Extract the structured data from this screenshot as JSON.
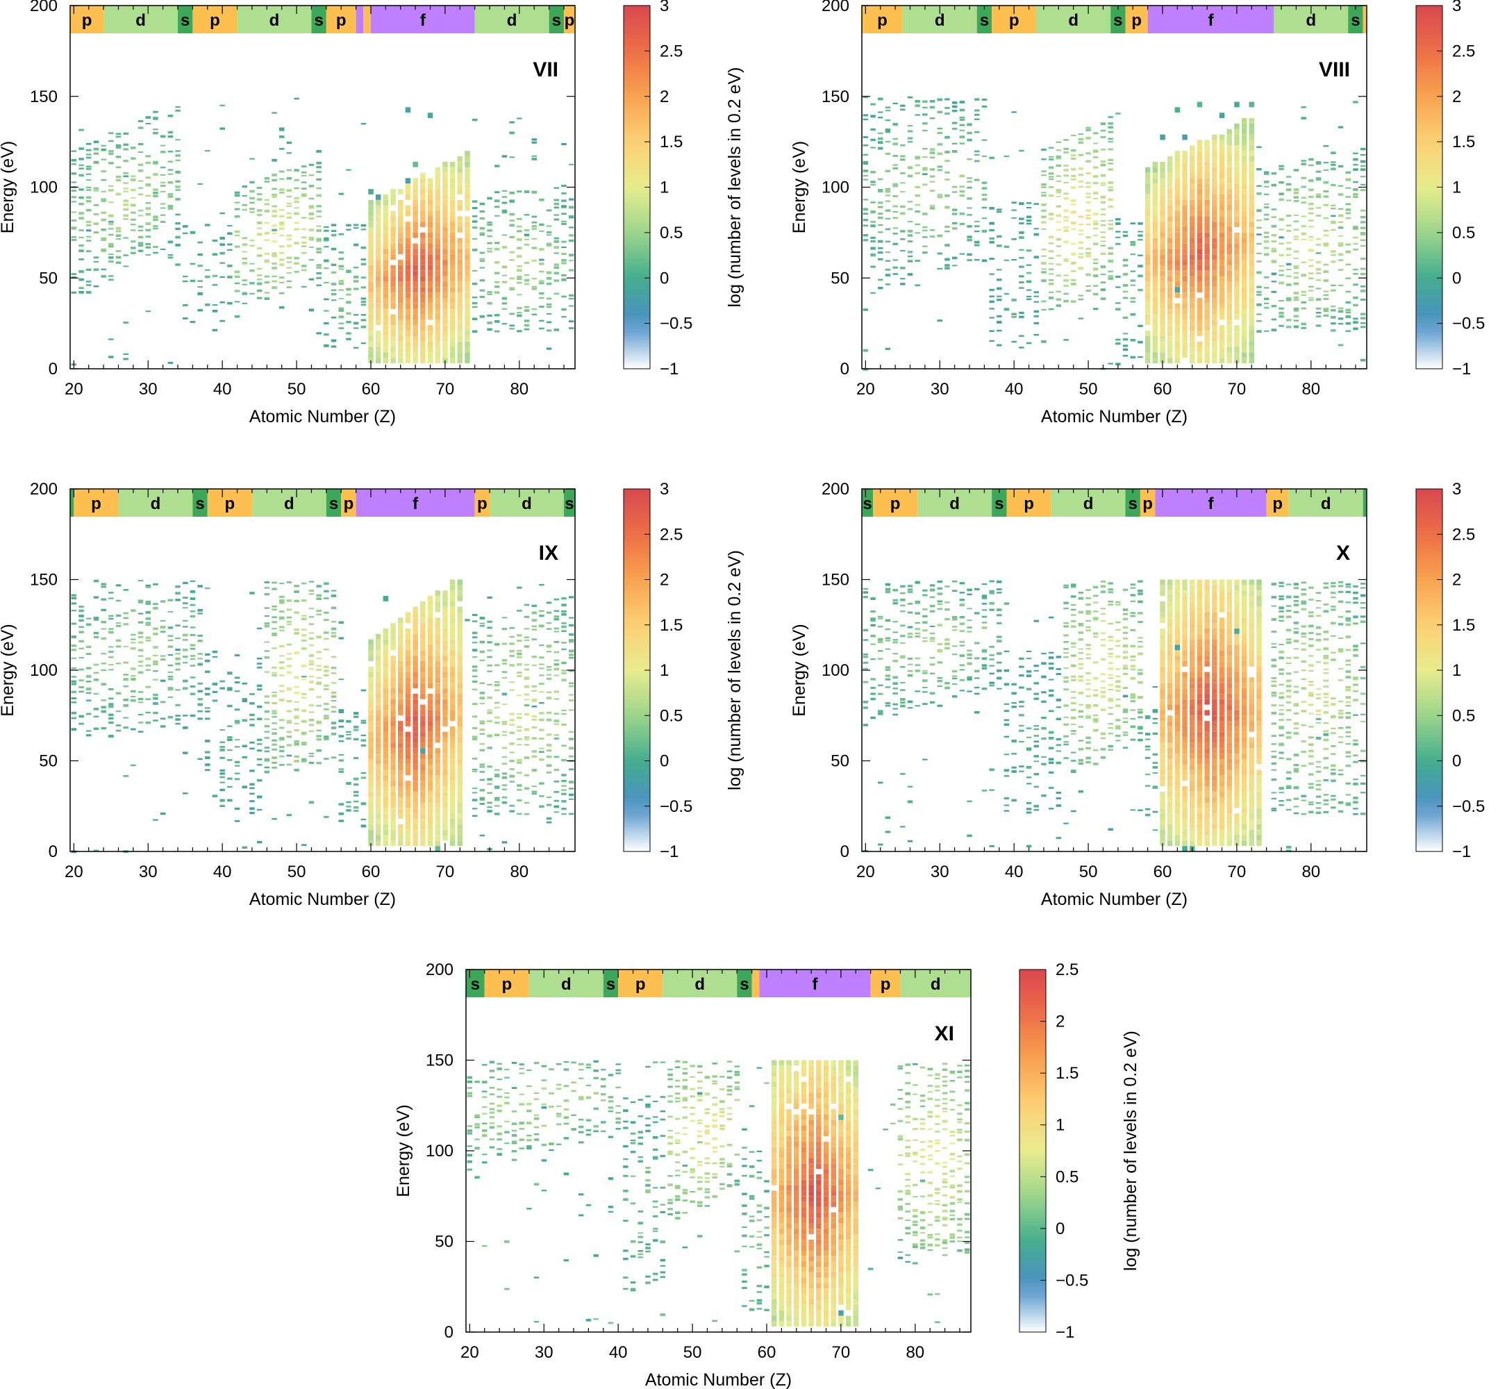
{
  "figure": {
    "xlabel": "Atomic Number (Z)",
    "ylabel": "Energy (eV)",
    "colorbar_label": "log (number of levels in 0.2 eV)",
    "block_colors": {
      "s": "#3ea85a",
      "p": "#fdbf4f",
      "d": "#aede8f",
      "f": "#bf80ff"
    },
    "colormap": [
      [
        "-1",
        "#ffffff"
      ],
      [
        "-0.5",
        "#4b8fc8"
      ],
      [
        "0",
        "#45ad8e"
      ],
      [
        "0.5",
        "#9dd58b"
      ],
      [
        "1",
        "#e8ec8e"
      ],
      [
        "1.5",
        "#fdd174"
      ],
      [
        "2",
        "#f8a350"
      ],
      [
        "2.5",
        "#ee6f47"
      ],
      [
        "3",
        "#d8474f"
      ]
    ]
  },
  "chart_data": [
    {
      "type": "heatmap",
      "title": "VII",
      "xlim": [
        19.5,
        87.5
      ],
      "ylim": [
        0,
        200
      ],
      "xticks": [
        20,
        30,
        40,
        50,
        60,
        70,
        80
      ],
      "yticks": [
        0,
        50,
        100,
        150,
        200
      ],
      "clim": [
        -1,
        3
      ],
      "cticks": [
        "3",
        "2.5",
        "2",
        "1.5",
        "1",
        "0.5",
        "0",
        "−0.5",
        "−1"
      ],
      "blocks": [
        [
          "p",
          19.5,
          24
        ],
        [
          "d",
          24,
          34
        ],
        [
          "s",
          34,
          36
        ],
        [
          "p",
          36,
          42
        ],
        [
          "d",
          42,
          52
        ],
        [
          "s",
          52,
          54
        ],
        [
          "p",
          54,
          58
        ],
        [
          "f",
          58,
          59
        ],
        [
          "p",
          59,
          60
        ],
        [
          "f",
          60,
          74
        ],
        [
          "d",
          74,
          84
        ],
        [
          "s",
          84,
          86
        ],
        [
          "p",
          86,
          87.5
        ]
      ],
      "clusters": [
        {
          "z": [
            20,
            34
          ],
          "e_lo": [
            40,
            60
          ],
          "e_hi": [
            120,
            147
          ],
          "peak": 0.7
        },
        {
          "z": [
            35,
            41
          ],
          "e_lo": [
            20,
            20
          ],
          "e_hi": [
            80,
            80
          ],
          "peak": 0.2
        },
        {
          "z": [
            42,
            53
          ],
          "e_lo": [
            35,
            45
          ],
          "e_hi": [
            100,
            115
          ],
          "peak": 1.1
        },
        {
          "z": [
            54,
            59
          ],
          "e_lo": [
            10,
            10
          ],
          "e_hi": [
            80,
            80
          ],
          "peak": 0.5
        },
        {
          "z": [
            60,
            73
          ],
          "e_lo": [
            2,
            2
          ],
          "e_hi": [
            90,
            118
          ],
          "peak": 2.8
        },
        {
          "z": [
            74,
            87
          ],
          "e_lo": [
            20,
            20
          ],
          "e_hi": [
            95,
            100
          ],
          "peak": 0.7
        }
      ]
    },
    {
      "type": "heatmap",
      "title": "VIII",
      "xlim": [
        19.5,
        87.5
      ],
      "ylim": [
        0,
        200
      ],
      "xticks": [
        20,
        30,
        40,
        50,
        60,
        70,
        80
      ],
      "yticks": [
        0,
        50,
        100,
        150,
        200
      ],
      "clim": [
        -1,
        3
      ],
      "cticks": [
        "3",
        "2.5",
        "2",
        "1.5",
        "1",
        "0.5",
        "0",
        "−0.5",
        "−1"
      ],
      "blocks": [
        [
          "p",
          19.5,
          25
        ],
        [
          "d",
          25,
          35
        ],
        [
          "s",
          35,
          37
        ],
        [
          "p",
          37,
          43
        ],
        [
          "d",
          43,
          53
        ],
        [
          "s",
          53,
          55
        ],
        [
          "p",
          55,
          58
        ],
        [
          "f",
          58,
          75
        ],
        [
          "d",
          75,
          85
        ],
        [
          "s",
          85,
          87
        ],
        [
          "p",
          87,
          87.5
        ]
      ],
      "clusters": [
        {
          "z": [
            20,
            36
          ],
          "e_lo": [
            40,
            60
          ],
          "e_hi": [
            150,
            150
          ],
          "peak": 0.6
        },
        {
          "z": [
            37,
            43
          ],
          "e_lo": [
            10,
            10
          ],
          "e_hi": [
            90,
            90
          ],
          "peak": 0.2
        },
        {
          "z": [
            44,
            53
          ],
          "e_lo": [
            30,
            40
          ],
          "e_hi": [
            120,
            138
          ],
          "peak": 1.3
        },
        {
          "z": [
            54,
            57
          ],
          "e_lo": [
            5,
            5
          ],
          "e_hi": [
            80,
            80
          ],
          "peak": 0.4
        },
        {
          "z": [
            58,
            72
          ],
          "e_lo": [
            2,
            2
          ],
          "e_hi": [
            110,
            137
          ],
          "peak": 2.7
        },
        {
          "z": [
            73,
            87
          ],
          "e_lo": [
            20,
            20
          ],
          "e_hi": [
            110,
            120
          ],
          "peak": 0.9
        }
      ]
    },
    {
      "type": "heatmap",
      "title": "IX",
      "xlim": [
        19.5,
        87.5
      ],
      "ylim": [
        0,
        200
      ],
      "xticks": [
        20,
        30,
        40,
        50,
        60,
        70,
        80
      ],
      "yticks": [
        0,
        50,
        100,
        150,
        200
      ],
      "clim": [
        -1,
        3
      ],
      "cticks": [
        "3",
        "2.5",
        "2",
        "1.5",
        "1",
        "0.5",
        "0",
        "−0.5",
        "−1"
      ],
      "blocks": [
        [
          "s",
          19.5,
          20
        ],
        [
          "p",
          20,
          26
        ],
        [
          "d",
          26,
          36
        ],
        [
          "s",
          36,
          38
        ],
        [
          "p",
          38,
          44
        ],
        [
          "d",
          44,
          54
        ],
        [
          "s",
          54,
          56
        ],
        [
          "p",
          56,
          58
        ],
        [
          "f",
          58,
          74
        ],
        [
          "p",
          74,
          76
        ],
        [
          "d",
          76,
          86
        ],
        [
          "s",
          86,
          87.5
        ]
      ],
      "clusters": [
        {
          "z": [
            20,
            37
          ],
          "e_lo": [
            60,
            70
          ],
          "e_hi": [
            150,
            150
          ],
          "peak": 0.6
        },
        {
          "z": [
            38,
            45
          ],
          "e_lo": [
            20,
            20
          ],
          "e_hi": [
            110,
            110
          ],
          "peak": 0.2
        },
        {
          "z": [
            46,
            55
          ],
          "e_lo": [
            40,
            50
          ],
          "e_hi": [
            150,
            150
          ],
          "peak": 1.1
        },
        {
          "z": [
            56,
            59
          ],
          "e_lo": [
            10,
            10
          ],
          "e_hi": [
            80,
            80
          ],
          "peak": 0.4
        },
        {
          "z": [
            60,
            72
          ],
          "e_lo": [
            2,
            2
          ],
          "e_hi": [
            115,
            150
          ],
          "peak": 2.8
        },
        {
          "z": [
            74,
            87
          ],
          "e_lo": [
            20,
            20
          ],
          "e_hi": [
            130,
            140
          ],
          "peak": 0.9
        }
      ]
    },
    {
      "type": "heatmap",
      "title": "X",
      "xlim": [
        19.5,
        87.5
      ],
      "ylim": [
        0,
        200
      ],
      "xticks": [
        20,
        30,
        40,
        50,
        60,
        70,
        80
      ],
      "yticks": [
        0,
        50,
        100,
        150,
        200
      ],
      "clim": [
        -1,
        3
      ],
      "cticks": [
        "3",
        "2.5",
        "2",
        "1.5",
        "1",
        "0.5",
        "0",
        "−0.5",
        "−1"
      ],
      "blocks": [
        [
          "s",
          19.5,
          21
        ],
        [
          "p",
          21,
          27
        ],
        [
          "d",
          27,
          37
        ],
        [
          "s",
          37,
          39
        ],
        [
          "p",
          39,
          45
        ],
        [
          "d",
          45,
          55
        ],
        [
          "s",
          55,
          57
        ],
        [
          "p",
          57,
          59
        ],
        [
          "f",
          59,
          74
        ],
        [
          "p",
          74,
          77
        ],
        [
          "d",
          77,
          87
        ],
        [
          "s",
          87,
          87.5
        ]
      ],
      "clusters": [
        {
          "z": [
            20,
            38
          ],
          "e_lo": [
            70,
            90
          ],
          "e_hi": [
            150,
            150
          ],
          "peak": 0.6
        },
        {
          "z": [
            39,
            46
          ],
          "e_lo": [
            20,
            20
          ],
          "e_hi": [
            110,
            110
          ],
          "peak": 0.2
        },
        {
          "z": [
            47,
            57
          ],
          "e_lo": [
            40,
            60
          ],
          "e_hi": [
            150,
            150
          ],
          "peak": 1.1
        },
        {
          "z": [
            58,
            59
          ],
          "e_lo": [
            10,
            10
          ],
          "e_hi": [
            80,
            80
          ],
          "peak": 0.4
        },
        {
          "z": [
            60,
            73
          ],
          "e_lo": [
            2,
            2
          ],
          "e_hi": [
            150,
            150
          ],
          "peak": 2.9
        },
        {
          "z": [
            75,
            87
          ],
          "e_lo": [
            20,
            20
          ],
          "e_hi": [
            150,
            150
          ],
          "peak": 0.9
        }
      ]
    },
    {
      "type": "heatmap",
      "title": "XI",
      "xlim": [
        19.5,
        87.5
      ],
      "ylim": [
        0,
        200
      ],
      "xticks": [
        20,
        30,
        40,
        50,
        60,
        70,
        80
      ],
      "yticks": [
        0,
        50,
        100,
        150,
        200
      ],
      "clim": [
        -1,
        2.5
      ],
      "cticks": [
        "2.5",
        "2",
        "1.5",
        "1",
        "0.5",
        "0",
        "−0.5",
        "−1"
      ],
      "blocks": [
        [
          "s",
          19.5,
          22
        ],
        [
          "p",
          22,
          28
        ],
        [
          "d",
          28,
          38
        ],
        [
          "s",
          38,
          40
        ],
        [
          "p",
          40,
          46
        ],
        [
          "d",
          46,
          56
        ],
        [
          "s",
          56,
          58
        ],
        [
          "p",
          58,
          59
        ],
        [
          "f",
          59,
          74
        ],
        [
          "p",
          74,
          78
        ],
        [
          "d",
          78,
          87.5
        ]
      ],
      "clusters": [
        {
          "z": [
            20,
            40
          ],
          "e_lo": [
            90,
            110
          ],
          "e_hi": [
            150,
            150
          ],
          "peak": 0.5
        },
        {
          "z": [
            41,
            46
          ],
          "e_lo": [
            20,
            20
          ],
          "e_hi": [
            130,
            130
          ],
          "peak": 0.2
        },
        {
          "z": [
            47,
            56
          ],
          "e_lo": [
            60,
            80
          ],
          "e_hi": [
            150,
            150
          ],
          "peak": 0.9
        },
        {
          "z": [
            57,
            60
          ],
          "e_lo": [
            10,
            10
          ],
          "e_hi": [
            100,
            100
          ],
          "peak": 0.3
        },
        {
          "z": [
            61,
            72
          ],
          "e_lo": [
            2,
            2
          ],
          "e_hi": [
            150,
            150
          ],
          "peak": 2.4
        },
        {
          "z": [
            78,
            87
          ],
          "e_lo": [
            40,
            40
          ],
          "e_hi": [
            150,
            150
          ],
          "peak": 0.9
        }
      ]
    }
  ]
}
